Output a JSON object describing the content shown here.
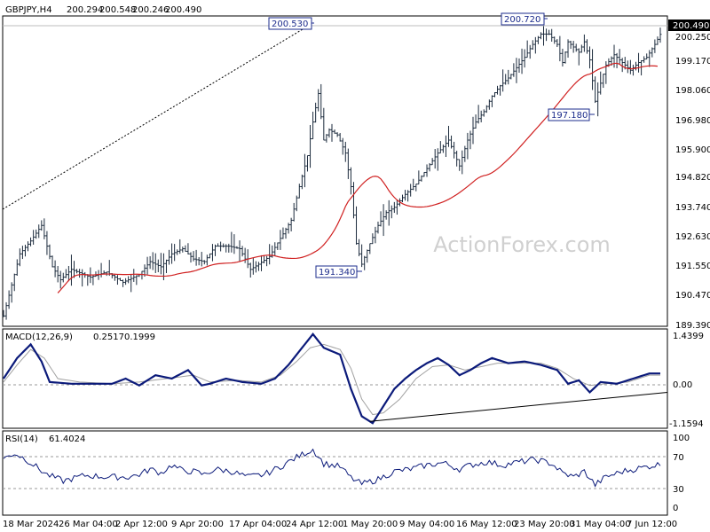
{
  "chart_data": [
    {
      "type": "bar",
      "title": "GBPJPY,H4",
      "header_values": [
        "200.294",
        "200.548",
        "200.246",
        "200.490"
      ],
      "watermark": "ActionForex.com",
      "y_ticks": [
        "200.250",
        "199.170",
        "198.060",
        "196.980",
        "195.900",
        "194.820",
        "193.740",
        "192.630",
        "191.550",
        "190.470",
        "189.390"
      ],
      "y_range": [
        189.2,
        201.2
      ],
      "last_price": "200.490",
      "x_ticks": [
        "18 Mar 2024",
        "26 Mar 04:00",
        "2 Apr 12:00",
        "9 Apr 20:00",
        "17 Apr 04:00",
        "24 Apr 12:00",
        "1 May 20:00",
        "9 May 04:00",
        "16 May 12:00",
        "23 May 20:00",
        "31 May 04:00",
        "7 Jun 12:00"
      ],
      "annotations": [
        "200.530",
        "191.340",
        "200.720",
        "197.180"
      ],
      "price_waypoints": [
        [
          0,
          189.6
        ],
        [
          3,
          190.8
        ],
        [
          6,
          192.0
        ],
        [
          10,
          192.5
        ],
        [
          14,
          193.1
        ],
        [
          16,
          192.3
        ],
        [
          18,
          191.5
        ],
        [
          21,
          191.0
        ],
        [
          25,
          191.4
        ],
        [
          32,
          191.1
        ],
        [
          38,
          191.3
        ],
        [
          44,
          190.9
        ],
        [
          50,
          191.2
        ],
        [
          54,
          191.7
        ],
        [
          58,
          191.5
        ],
        [
          62,
          192.0
        ],
        [
          66,
          192.2
        ],
        [
          70,
          191.8
        ],
        [
          74,
          191.7
        ],
        [
          78,
          192.3
        ],
        [
          83,
          192.3
        ],
        [
          87,
          192.2
        ],
        [
          91,
          191.4
        ],
        [
          94,
          191.6
        ],
        [
          98,
          191.9
        ],
        [
          102,
          192.6
        ],
        [
          106,
          193.3
        ],
        [
          109,
          194.6
        ],
        [
          112,
          195.8
        ],
        [
          114,
          197.1
        ],
        [
          116,
          198.2
        ],
        [
          118,
          196.4
        ],
        [
          120,
          196.8
        ],
        [
          123,
          196.6
        ],
        [
          126,
          195.9
        ],
        [
          128,
          194.6
        ],
        [
          130,
          192.4
        ],
        [
          132,
          191.6
        ],
        [
          135,
          192.4
        ],
        [
          138,
          193.1
        ],
        [
          141,
          193.6
        ],
        [
          144,
          193.8
        ],
        [
          148,
          194.3
        ],
        [
          152,
          194.7
        ],
        [
          156,
          195.3
        ],
        [
          160,
          195.9
        ],
        [
          164,
          196.4
        ],
        [
          168,
          195.4
        ],
        [
          171,
          196.4
        ],
        [
          174,
          197.1
        ],
        [
          177,
          197.5
        ],
        [
          180,
          198.1
        ],
        [
          183,
          198.5
        ],
        [
          186,
          198.8
        ],
        [
          189,
          199.2
        ],
        [
          192,
          199.6
        ],
        [
          195,
          200.1
        ],
        [
          198,
          200.5
        ],
        [
          201,
          200.5
        ],
        [
          204,
          200.1
        ],
        [
          206,
          199.4
        ],
        [
          208,
          200.2
        ],
        [
          210,
          200.0
        ],
        [
          212,
          199.8
        ],
        [
          214,
          200.2
        ],
        [
          216,
          199.5
        ],
        [
          218,
          197.9
        ],
        [
          220,
          198.6
        ],
        [
          222,
          199.3
        ],
        [
          225,
          199.7
        ],
        [
          228,
          199.4
        ],
        [
          231,
          199.1
        ],
        [
          234,
          199.4
        ],
        [
          237,
          199.6
        ],
        [
          240,
          200.1
        ],
        [
          242,
          200.49
        ]
      ],
      "ma_label": "red moving average",
      "indicator_1": {
        "name": "MACD(12,26,9)",
        "values": [
          "0.2517",
          "0.1999"
        ],
        "y_ticks": [
          "1.4399",
          "0.00",
          "-1.1594"
        ],
        "y_range": [
          -1.35,
          1.55
        ],
        "macd_waypoints": [
          [
            0,
            0.1
          ],
          [
            5,
            0.7
          ],
          [
            10,
            1.1
          ],
          [
            14,
            0.6
          ],
          [
            17,
            0.0
          ],
          [
            25,
            -0.05
          ],
          [
            40,
            -0.05
          ],
          [
            45,
            0.1
          ],
          [
            50,
            -0.1
          ],
          [
            56,
            0.2
          ],
          [
            62,
            0.1
          ],
          [
            68,
            0.35
          ],
          [
            73,
            -0.1
          ],
          [
            76,
            -0.05
          ],
          [
            82,
            0.1
          ],
          [
            88,
            0.0
          ],
          [
            95,
            -0.05
          ],
          [
            100,
            0.1
          ],
          [
            105,
            0.5
          ],
          [
            110,
            1.0
          ],
          [
            114,
            1.4
          ],
          [
            118,
            1.0
          ],
          [
            124,
            0.8
          ],
          [
            128,
            -0.2
          ],
          [
            132,
            -1.0
          ],
          [
            136,
            -1.2
          ],
          [
            140,
            -0.7
          ],
          [
            144,
            -0.2
          ],
          [
            148,
            0.1
          ],
          [
            152,
            0.35
          ],
          [
            156,
            0.55
          ],
          [
            160,
            0.7
          ],
          [
            164,
            0.5
          ],
          [
            168,
            0.2
          ],
          [
            172,
            0.35
          ],
          [
            176,
            0.55
          ],
          [
            180,
            0.7
          ],
          [
            186,
            0.55
          ],
          [
            192,
            0.6
          ],
          [
            198,
            0.5
          ],
          [
            204,
            0.35
          ],
          [
            208,
            -0.05
          ],
          [
            212,
            0.05
          ],
          [
            216,
            -0.3
          ],
          [
            220,
            0.0
          ],
          [
            226,
            -0.05
          ],
          [
            232,
            0.1
          ],
          [
            238,
            0.25
          ],
          [
            242,
            0.25
          ]
        ],
        "signal_waypoints": [
          [
            0,
            0.0
          ],
          [
            5,
            0.5
          ],
          [
            10,
            0.95
          ],
          [
            15,
            0.7
          ],
          [
            20,
            0.1
          ],
          [
            28,
            0.0
          ],
          [
            40,
            -0.05
          ],
          [
            50,
            0.0
          ],
          [
            60,
            0.1
          ],
          [
            70,
            0.2
          ],
          [
            76,
            0.0
          ],
          [
            86,
            0.05
          ],
          [
            95,
            0.0
          ],
          [
            102,
            0.2
          ],
          [
            108,
            0.6
          ],
          [
            113,
            1.0
          ],
          [
            118,
            1.1
          ],
          [
            124,
            0.95
          ],
          [
            128,
            0.4
          ],
          [
            132,
            -0.5
          ],
          [
            136,
            -0.95
          ],
          [
            140,
            -0.9
          ],
          [
            146,
            -0.5
          ],
          [
            152,
            0.1
          ],
          [
            158,
            0.45
          ],
          [
            164,
            0.5
          ],
          [
            170,
            0.35
          ],
          [
            176,
            0.45
          ],
          [
            182,
            0.55
          ],
          [
            190,
            0.55
          ],
          [
            198,
            0.55
          ],
          [
            204,
            0.4
          ],
          [
            210,
            0.1
          ],
          [
            216,
            -0.1
          ],
          [
            222,
            -0.05
          ],
          [
            230,
            0.0
          ],
          [
            238,
            0.2
          ],
          [
            242,
            0.2
          ]
        ],
        "trendline": [
          [
            135,
            -1.15
          ],
          [
            246,
            -0.3
          ]
        ]
      },
      "indicator_2": {
        "name": "RSI(14)",
        "value": "61.4024",
        "y_ticks": [
          "100",
          "70",
          "30",
          "0"
        ],
        "y_range": [
          0,
          100
        ],
        "levels": [
          70,
          30
        ],
        "rsi_waypoints": [
          [
            0,
            68
          ],
          [
            4,
            75
          ],
          [
            8,
            68
          ],
          [
            12,
            58
          ],
          [
            16,
            48
          ],
          [
            22,
            40
          ],
          [
            30,
            47
          ],
          [
            38,
            45
          ],
          [
            46,
            45
          ],
          [
            50,
            48
          ],
          [
            54,
            55
          ],
          [
            58,
            50
          ],
          [
            62,
            60
          ],
          [
            66,
            53
          ],
          [
            70,
            52
          ],
          [
            74,
            48
          ],
          [
            78,
            55
          ],
          [
            84,
            52
          ],
          [
            90,
            45
          ],
          [
            96,
            48
          ],
          [
            102,
            58
          ],
          [
            108,
            70
          ],
          [
            114,
            80
          ],
          [
            118,
            62
          ],
          [
            124,
            58
          ],
          [
            128,
            44
          ],
          [
            132,
            36
          ],
          [
            138,
            42
          ],
          [
            144,
            52
          ],
          [
            150,
            55
          ],
          [
            156,
            60
          ],
          [
            162,
            63
          ],
          [
            168,
            55
          ],
          [
            172,
            60
          ],
          [
            178,
            64
          ],
          [
            184,
            60
          ],
          [
            190,
            64
          ],
          [
            196,
            67
          ],
          [
            202,
            62
          ],
          [
            206,
            50
          ],
          [
            210,
            45
          ],
          [
            214,
            52
          ],
          [
            218,
            35
          ],
          [
            222,
            45
          ],
          [
            228,
            52
          ],
          [
            234,
            56
          ],
          [
            240,
            60
          ],
          [
            242,
            61
          ]
        ]
      }
    }
  ]
}
